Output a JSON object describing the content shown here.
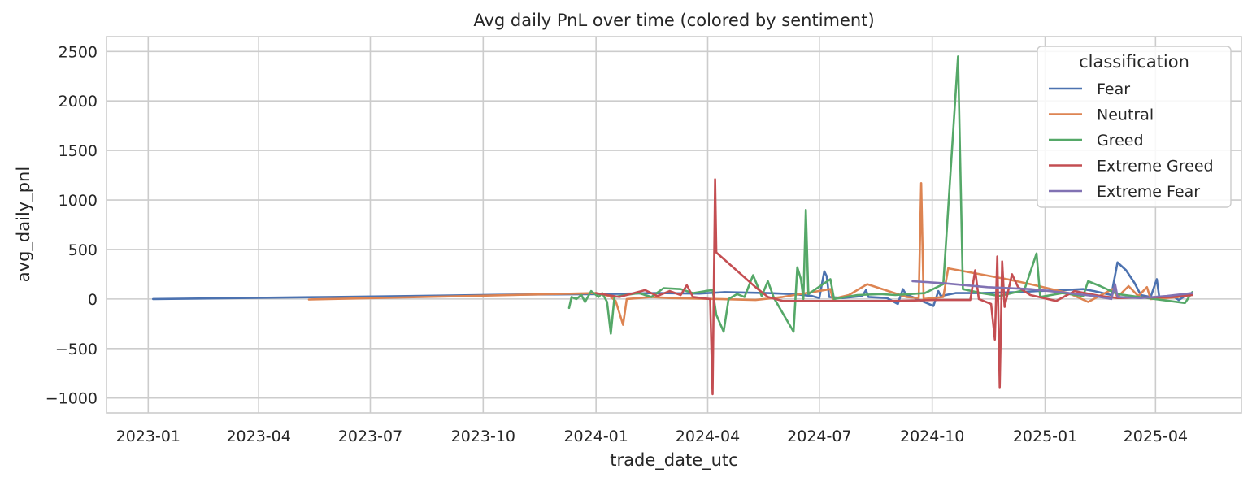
{
  "chart_data": {
    "type": "line",
    "title": "Avg daily PnL over time (colored by sentiment)",
    "xlabel": "trade_date_utc",
    "ylabel": "avg_daily_pnl",
    "x_axis": "date",
    "xlim": [
      "2022-11-28",
      "2025-06-10"
    ],
    "ylim": [
      -1150,
      2650
    ],
    "x_ticks": [
      "2023-01",
      "2023-04",
      "2023-07",
      "2023-10",
      "2024-01",
      "2024-04",
      "2024-07",
      "2024-10",
      "2025-01",
      "2025-04"
    ],
    "y_ticks": [
      -1000,
      -500,
      0,
      500,
      1000,
      1500,
      2000,
      2500
    ],
    "y_tick_labels": [
      "−1000",
      "−500",
      "0",
      "500",
      "1000",
      "1500",
      "2000",
      "2500"
    ],
    "grid": true,
    "legend": {
      "title": "classification",
      "placement": "top-right"
    },
    "series": [
      {
        "name": "Fear",
        "color": "#4c72b0",
        "points": [
          [
            "2023-01-05",
            0
          ],
          [
            "2023-06-01",
            20
          ],
          [
            "2023-11-01",
            45
          ],
          [
            "2024-01-05",
            50
          ],
          [
            "2024-02-20",
            60
          ],
          [
            "2024-03-25",
            55
          ],
          [
            "2024-04-15",
            70
          ],
          [
            "2024-05-20",
            60
          ],
          [
            "2024-06-10",
            50
          ],
          [
            "2024-06-25",
            30
          ],
          [
            "2024-07-01",
            10
          ],
          [
            "2024-07-05",
            280
          ],
          [
            "2024-07-07",
            230
          ],
          [
            "2024-07-09",
            20
          ],
          [
            "2024-07-20",
            10
          ],
          [
            "2024-08-05",
            30
          ],
          [
            "2024-08-08",
            90
          ],
          [
            "2024-08-10",
            20
          ],
          [
            "2024-08-25",
            10
          ],
          [
            "2024-09-03",
            -50
          ],
          [
            "2024-09-07",
            100
          ],
          [
            "2024-09-10",
            40
          ],
          [
            "2024-09-15",
            20
          ],
          [
            "2024-10-02",
            -70
          ],
          [
            "2024-10-06",
            80
          ],
          [
            "2024-10-08",
            30
          ],
          [
            "2024-10-20",
            60
          ],
          [
            "2024-11-10",
            60
          ],
          [
            "2024-12-10",
            70
          ],
          [
            "2024-12-25",
            80
          ],
          [
            "2025-01-15",
            90
          ],
          [
            "2025-02-01",
            100
          ],
          [
            "2025-02-10",
            80
          ],
          [
            "2025-02-24",
            40
          ],
          [
            "2025-03-01",
            370
          ],
          [
            "2025-03-08",
            290
          ],
          [
            "2025-03-15",
            160
          ],
          [
            "2025-03-20",
            40
          ],
          [
            "2025-03-28",
            20
          ],
          [
            "2025-04-02",
            200
          ],
          [
            "2025-04-04",
            20
          ],
          [
            "2025-04-15",
            30
          ],
          [
            "2025-04-20",
            -10
          ],
          [
            "2025-04-25",
            30
          ],
          [
            "2025-05-01",
            50
          ]
        ]
      },
      {
        "name": "Neutral",
        "color": "#dd8452",
        "points": [
          [
            "2023-05-12",
            -5
          ],
          [
            "2023-09-01",
            25
          ],
          [
            "2024-01-01",
            60
          ],
          [
            "2024-01-12",
            30
          ],
          [
            "2024-01-17",
            -20
          ],
          [
            "2024-01-23",
            -260
          ],
          [
            "2024-01-26",
            0
          ],
          [
            "2024-02-15",
            20
          ],
          [
            "2024-03-01",
            10
          ],
          [
            "2024-04-10",
            0
          ],
          [
            "2024-05-10",
            -10
          ],
          [
            "2024-06-01",
            20
          ],
          [
            "2024-07-10",
            100
          ],
          [
            "2024-07-12",
            -10
          ],
          [
            "2024-07-15",
            10
          ],
          [
            "2024-07-25",
            40
          ],
          [
            "2024-08-09",
            150
          ],
          [
            "2024-09-10",
            20
          ],
          [
            "2024-09-20",
            10
          ],
          [
            "2024-09-22",
            1170
          ],
          [
            "2024-09-24",
            0
          ],
          [
            "2024-10-10",
            20
          ],
          [
            "2024-10-14",
            310
          ],
          [
            "2024-12-01",
            200
          ],
          [
            "2024-12-20",
            150
          ],
          [
            "2025-01-20",
            60
          ],
          [
            "2025-02-05",
            -30
          ],
          [
            "2025-02-25",
            100
          ],
          [
            "2025-03-01",
            20
          ],
          [
            "2025-03-10",
            130
          ],
          [
            "2025-03-18",
            30
          ],
          [
            "2025-03-25",
            120
          ],
          [
            "2025-03-28",
            0
          ],
          [
            "2025-04-10",
            10
          ],
          [
            "2025-04-20",
            20
          ],
          [
            "2025-05-01",
            50
          ]
        ]
      },
      {
        "name": "Greed",
        "color": "#55a868",
        "points": [
          [
            "2023-12-10",
            -90
          ],
          [
            "2023-12-12",
            20
          ],
          [
            "2023-12-16",
            0
          ],
          [
            "2023-12-20",
            40
          ],
          [
            "2023-12-23",
            -30
          ],
          [
            "2023-12-28",
            80
          ],
          [
            "2024-01-03",
            20
          ],
          [
            "2024-01-06",
            60
          ],
          [
            "2024-01-10",
            -30
          ],
          [
            "2024-01-13",
            -350
          ],
          [
            "2024-01-16",
            20
          ],
          [
            "2024-01-25",
            40
          ],
          [
            "2024-02-05",
            60
          ],
          [
            "2024-02-15",
            20
          ],
          [
            "2024-02-25",
            110
          ],
          [
            "2024-03-10",
            100
          ],
          [
            "2024-03-20",
            60
          ],
          [
            "2024-03-30",
            80
          ],
          [
            "2024-04-05",
            90
          ],
          [
            "2024-04-08",
            -160
          ],
          [
            "2024-04-14",
            -330
          ],
          [
            "2024-04-18",
            0
          ],
          [
            "2024-04-25",
            50
          ],
          [
            "2024-05-01",
            20
          ],
          [
            "2024-05-08",
            240
          ],
          [
            "2024-05-15",
            30
          ],
          [
            "2024-05-20",
            180
          ],
          [
            "2024-05-25",
            10
          ],
          [
            "2024-06-10",
            -330
          ],
          [
            "2024-06-13",
            320
          ],
          [
            "2024-06-16",
            200
          ],
          [
            "2024-06-18",
            0
          ],
          [
            "2024-06-20",
            900
          ],
          [
            "2024-06-22",
            50
          ],
          [
            "2024-07-10",
            200
          ],
          [
            "2024-07-13",
            0
          ],
          [
            "2024-08-01",
            40
          ],
          [
            "2024-08-20",
            50
          ],
          [
            "2024-09-01",
            40
          ],
          [
            "2024-09-25",
            60
          ],
          [
            "2024-10-10",
            150
          ],
          [
            "2024-10-22",
            2450
          ],
          [
            "2024-10-26",
            100
          ],
          [
            "2024-11-10",
            60
          ],
          [
            "2024-11-25",
            30
          ],
          [
            "2024-12-15",
            90
          ],
          [
            "2024-12-25",
            460
          ],
          [
            "2024-12-28",
            20
          ],
          [
            "2025-01-15",
            60
          ],
          [
            "2025-02-01",
            30
          ],
          [
            "2025-02-05",
            180
          ],
          [
            "2025-02-15",
            130
          ],
          [
            "2025-03-01",
            50
          ],
          [
            "2025-04-25",
            -40
          ],
          [
            "2025-05-01",
            70
          ]
        ]
      },
      {
        "name": "Extreme Greed",
        "color": "#c44e52",
        "points": [
          [
            "2024-01-01",
            60
          ],
          [
            "2024-01-20",
            20
          ],
          [
            "2024-02-10",
            90
          ],
          [
            "2024-02-20",
            30
          ],
          [
            "2024-03-01",
            80
          ],
          [
            "2024-03-10",
            40
          ],
          [
            "2024-03-15",
            140
          ],
          [
            "2024-03-20",
            20
          ],
          [
            "2024-04-03",
            0
          ],
          [
            "2024-04-05",
            -960
          ],
          [
            "2024-04-07",
            1210
          ],
          [
            "2024-04-08",
            470
          ],
          [
            "2024-05-10",
            120
          ],
          [
            "2024-05-20",
            20
          ],
          [
            "2024-06-01",
            -20
          ],
          [
            "2024-07-01",
            -20
          ],
          [
            "2024-08-01",
            -20
          ],
          [
            "2024-09-01",
            -20
          ],
          [
            "2024-10-01",
            -10
          ],
          [
            "2024-11-01",
            -10
          ],
          [
            "2024-11-05",
            290
          ],
          [
            "2024-11-08",
            0
          ],
          [
            "2024-11-18",
            -50
          ],
          [
            "2024-11-21",
            -410
          ],
          [
            "2024-11-23",
            430
          ],
          [
            "2024-11-25",
            -890
          ],
          [
            "2024-11-27",
            380
          ],
          [
            "2024-11-29",
            -80
          ],
          [
            "2024-12-05",
            250
          ],
          [
            "2024-12-10",
            120
          ],
          [
            "2024-12-20",
            40
          ],
          [
            "2025-01-10",
            -20
          ],
          [
            "2025-01-25",
            80
          ],
          [
            "2025-02-15",
            30
          ],
          [
            "2025-03-01",
            10
          ],
          [
            "2025-04-15",
            20
          ],
          [
            "2025-05-01",
            40
          ]
        ]
      },
      {
        "name": "Extreme Fear",
        "color": "#8172b3",
        "points": [
          [
            "2024-09-15",
            180
          ],
          [
            "2024-10-10",
            160
          ],
          [
            "2024-11-15",
            120
          ],
          [
            "2024-12-20",
            100
          ],
          [
            "2025-01-20",
            60
          ],
          [
            "2025-02-10",
            30
          ],
          [
            "2025-02-24",
            0
          ],
          [
            "2025-02-27",
            150
          ],
          [
            "2025-03-01",
            20
          ],
          [
            "2025-03-20",
            10
          ],
          [
            "2025-04-10",
            30
          ],
          [
            "2025-05-01",
            60
          ]
        ]
      }
    ]
  }
}
